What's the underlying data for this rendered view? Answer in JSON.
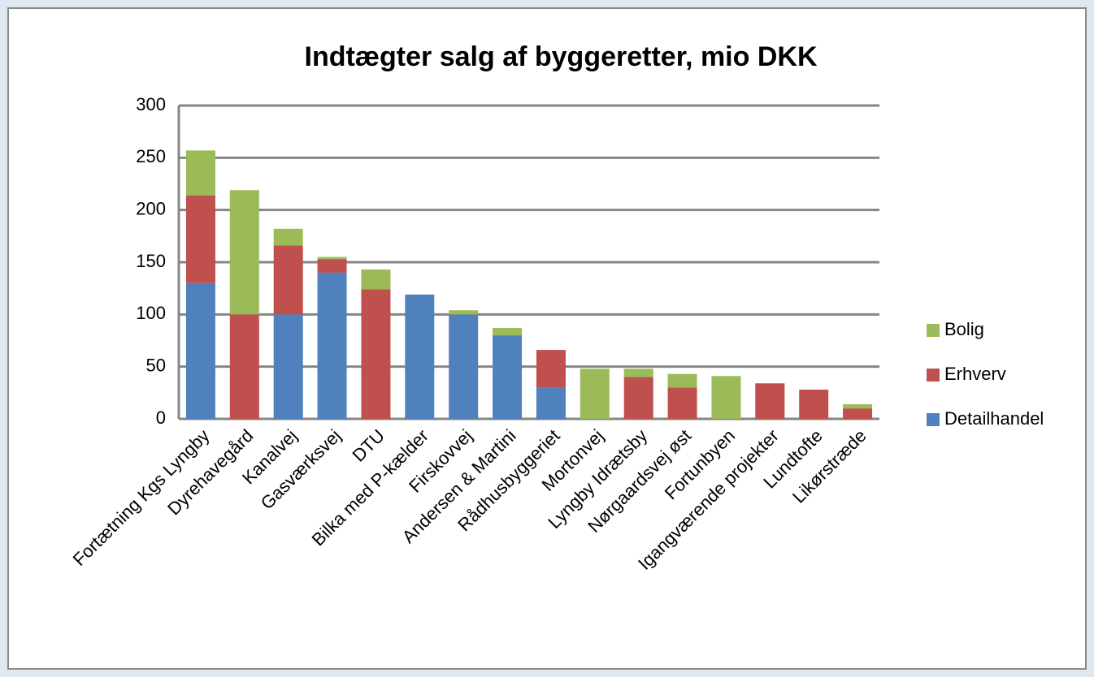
{
  "chart_data": {
    "type": "stacked_bar",
    "title": "Indtægter salg af byggeretter, mio DKK",
    "categories": [
      "Fortætning Kgs Lyngby",
      "Dyrehavegård",
      "Kanalvej",
      "Gasværksvej",
      "DTU",
      "Bilka med P-kælder",
      "Firskovvej",
      "Andersen & Martini",
      "Rådhusbyggeriet",
      "Mortonvej",
      "Lyngby Idrætsby",
      "Nørgaardsvej øst",
      "Fortunbyen",
      "Igangværende projekter",
      "Lundtofte",
      "Likørstræde"
    ],
    "series": [
      {
        "name": "Detailhandel",
        "color": "#4f81bd",
        "values": [
          130,
          0,
          100,
          140,
          0,
          119,
          100,
          80,
          30,
          0,
          0,
          0,
          0,
          0,
          0,
          0
        ]
      },
      {
        "name": "Erhverv",
        "color": "#c0504d",
        "values": [
          84,
          100,
          66,
          13,
          124,
          0,
          0,
          0,
          36,
          0,
          40,
          30,
          0,
          34,
          28,
          10
        ]
      },
      {
        "name": "Bolig",
        "color": "#9bbb59",
        "values": [
          43,
          119,
          16,
          2,
          19,
          0,
          4,
          7,
          0,
          48,
          8,
          13,
          41,
          0,
          0,
          4
        ]
      }
    ],
    "ylim": [
      0,
      300
    ],
    "yticks": [
      0,
      50,
      100,
      150,
      200,
      250,
      300
    ],
    "grid": true,
    "legend": "right"
  }
}
